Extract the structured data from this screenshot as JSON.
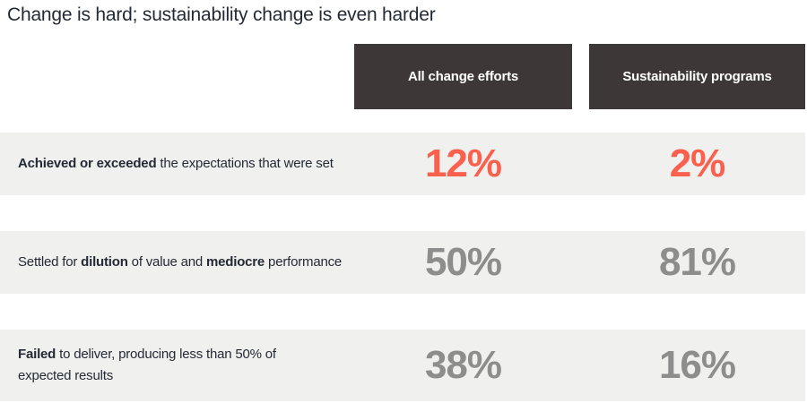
{
  "chart_data": {
    "type": "table",
    "title": "Change is hard; sustainability change is even harder",
    "columns": [
      "All change efforts",
      "Sustainability programs"
    ],
    "rows": [
      {
        "label_plain": "Achieved or exceeded the expectations that were set",
        "segments": [
          {
            "text": "Achieved or exceeded",
            "bold": true
          },
          {
            "text": " the expectations that were set",
            "bold": false
          }
        ],
        "values": [
          "12%",
          "2%"
        ],
        "values_numeric": [
          12,
          2
        ],
        "highlight": true
      },
      {
        "label_plain": "Settled for dilution of value and mediocre performance",
        "segments": [
          {
            "text": "Settled for ",
            "bold": false
          },
          {
            "text": "dilution",
            "bold": true
          },
          {
            "text": " of value and ",
            "bold": false
          },
          {
            "text": "mediocre",
            "bold": true
          },
          {
            "text": " performance",
            "bold": false
          }
        ],
        "values": [
          "50%",
          "81%"
        ],
        "values_numeric": [
          50,
          81
        ],
        "highlight": false
      },
      {
        "label_plain": "Failed to deliver, producing less than 50% of expected results",
        "segments": [
          {
            "text": "Failed",
            "bold": true
          },
          {
            "text": " to deliver, producing less than 50% of\nexpected results",
            "bold": false
          }
        ],
        "values": [
          "38%",
          "16%"
        ],
        "values_numeric": [
          38,
          16
        ],
        "highlight": false
      }
    ]
  },
  "colors": {
    "accent": "#f9614e",
    "muted": "#8d8d8d",
    "header_bg": "#3d3738",
    "row_bg": "#f0f0ee",
    "text": "#242a35",
    "page_bg": "#ffffff"
  }
}
